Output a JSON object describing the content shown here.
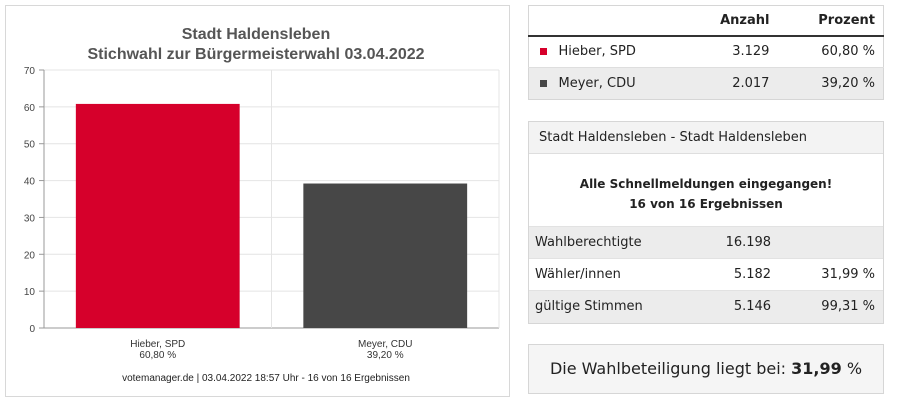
{
  "chart_data": {
    "type": "bar",
    "title": "Stadt Haldensleben",
    "subtitle": "Stichwahl zur Bürgermeisterwahl 03.04.2022",
    "categories": [
      "Hieber, SPD",
      "Meyer, CDU"
    ],
    "category_sublabels": [
      "60,80 %",
      "39,20 %"
    ],
    "values": [
      60.8,
      39.2
    ],
    "colors": [
      "#d6002b",
      "#474747"
    ],
    "yticks": [
      "0",
      "10",
      "20",
      "30",
      "40",
      "50",
      "60",
      "70"
    ],
    "ylim": [
      0,
      70
    ],
    "grid": true,
    "footer": "votemanager.de | 03.04.2022 18:57 Uhr - 16 von 16 Ergebnissen"
  },
  "table": {
    "headers": {
      "count": "Anzahl",
      "percent": "Prozent"
    },
    "rows": [
      {
        "name": "Hieber, SPD",
        "count": "3.129",
        "percent": "60,80 %",
        "color": "#d6002b"
      },
      {
        "name": "Meyer, CDU",
        "count": "2.017",
        "percent": "39,20 %",
        "color": "#474747"
      }
    ]
  },
  "info": {
    "header": "Stadt Haldensleben - Stadt Haldensleben",
    "message_line1": "Alle Schnellmeldungen eingegangen!",
    "message_line2": "16 von 16 Ergebnissen",
    "rows": [
      {
        "label": "Wahlberechtigte",
        "value": "16.198",
        "percent": ""
      },
      {
        "label": "Wähler/innen",
        "value": "5.182",
        "percent": "31,99 %"
      },
      {
        "label": "gültige Stimmen",
        "value": "5.146",
        "percent": "99,31 %"
      }
    ]
  },
  "turnout": {
    "prefix": "Die Wahlbeteiligung liegt bei:",
    "value": "31,99",
    "suffix": "%"
  }
}
